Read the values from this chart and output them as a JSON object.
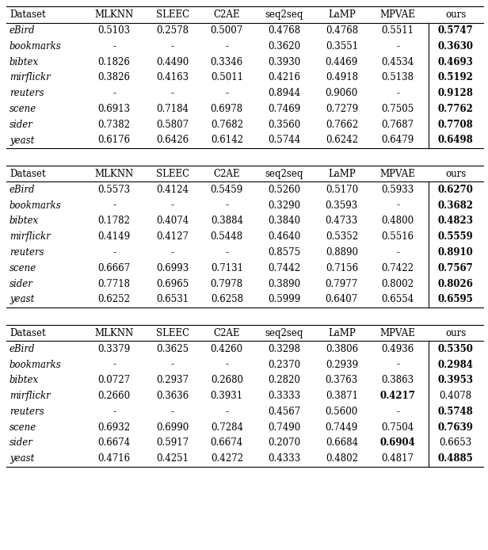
{
  "tables": [
    {
      "header": [
        "Dataset",
        "MLKNN",
        "SLEEC",
        "C2AE",
        "seq2seq",
        "LaMP",
        "MPVAE",
        "ours"
      ],
      "rows": [
        [
          "eBird",
          "0.5103",
          "0.2578",
          "0.5007",
          "0.4768",
          "0.4768",
          "0.5511",
          "0.5747"
        ],
        [
          "bookmarks",
          "-",
          "-",
          "-",
          "0.3620",
          "0.3551",
          "-",
          "0.3630"
        ],
        [
          "bibtex",
          "0.1826",
          "0.4490",
          "0.3346",
          "0.3930",
          "0.4469",
          "0.4534",
          "0.4693"
        ],
        [
          "mirflickr",
          "0.3826",
          "0.4163",
          "0.5011",
          "0.4216",
          "0.4918",
          "0.5138",
          "0.5192"
        ],
        [
          "reuters",
          "-",
          "-",
          "-",
          "0.8944",
          "0.9060",
          "-",
          "0.9128"
        ],
        [
          "scene",
          "0.6913",
          "0.7184",
          "0.6978",
          "0.7469",
          "0.7279",
          "0.7505",
          "0.7762"
        ],
        [
          "sider",
          "0.7382",
          "0.5807",
          "0.7682",
          "0.3560",
          "0.7662",
          "0.7687",
          "0.7708"
        ],
        [
          "yeast",
          "0.6176",
          "0.6426",
          "0.6142",
          "0.5744",
          "0.6242",
          "0.6479",
          "0.6498"
        ]
      ],
      "bold": {
        "0": 7,
        "1": 7,
        "2": 7,
        "3": 7,
        "4": 7,
        "5": 7,
        "6": 7,
        "7": 7
      }
    },
    {
      "header": [
        "Dataset",
        "MLKNN",
        "SLEEC",
        "C2AE",
        "seq2seq",
        "LaMP",
        "MPVAE",
        "ours"
      ],
      "rows": [
        [
          "eBird",
          "0.5573",
          "0.4124",
          "0.5459",
          "0.5260",
          "0.5170",
          "0.5933",
          "0.6270"
        ],
        [
          "bookmarks",
          "-",
          "-",
          "-",
          "0.3290",
          "0.3593",
          "-",
          "0.3682"
        ],
        [
          "bibtex",
          "0.1782",
          "0.4074",
          "0.3884",
          "0.3840",
          "0.4733",
          "0.4800",
          "0.4823"
        ],
        [
          "mirflickr",
          "0.4149",
          "0.4127",
          "0.5448",
          "0.4640",
          "0.5352",
          "0.5516",
          "0.5559"
        ],
        [
          "reuters",
          "-",
          "-",
          "-",
          "0.8575",
          "0.8890",
          "-",
          "0.8910"
        ],
        [
          "scene",
          "0.6667",
          "0.6993",
          "0.7131",
          "0.7442",
          "0.7156",
          "0.7422",
          "0.7567"
        ],
        [
          "sider",
          "0.7718",
          "0.6965",
          "0.7978",
          "0.3890",
          "0.7977",
          "0.8002",
          "0.8026"
        ],
        [
          "yeast",
          "0.6252",
          "0.6531",
          "0.6258",
          "0.5999",
          "0.6407",
          "0.6554",
          "0.6595"
        ]
      ],
      "bold": {
        "0": 7,
        "1": 7,
        "2": 7,
        "3": 7,
        "4": 7,
        "5": 7,
        "6": 7,
        "7": 7
      }
    },
    {
      "header": [
        "Dataset",
        "MLKNN",
        "SLEEC",
        "C2AE",
        "seq2seq",
        "LaMP",
        "MPVAE",
        "ours"
      ],
      "rows": [
        [
          "eBird",
          "0.3379",
          "0.3625",
          "0.4260",
          "0.3298",
          "0.3806",
          "0.4936",
          "0.5350"
        ],
        [
          "bookmarks",
          "-",
          "-",
          "-",
          "0.2370",
          "0.2939",
          "-",
          "0.2984"
        ],
        [
          "bibtex",
          "0.0727",
          "0.2937",
          "0.2680",
          "0.2820",
          "0.3763",
          "0.3863",
          "0.3953"
        ],
        [
          "mirflickr",
          "0.2660",
          "0.3636",
          "0.3931",
          "0.3333",
          "0.3871",
          "0.4217",
          "0.4078"
        ],
        [
          "reuters",
          "-",
          "-",
          "-",
          "0.4567",
          "0.5600",
          "-",
          "0.5748"
        ],
        [
          "scene",
          "0.6932",
          "0.6990",
          "0.7284",
          "0.7490",
          "0.7449",
          "0.7504",
          "0.7639"
        ],
        [
          "sider",
          "0.6674",
          "0.5917",
          "0.6674",
          "0.2070",
          "0.6684",
          "0.6904",
          "0.6653"
        ],
        [
          "yeast",
          "0.4716",
          "0.4251",
          "0.4272",
          "0.4333",
          "0.4802",
          "0.4817",
          "0.4885"
        ]
      ],
      "bold": {
        "0": 7,
        "1": 7,
        "2": 7,
        "3": 6,
        "4": 7,
        "5": 7,
        "6": 6,
        "7": 7
      }
    }
  ],
  "font_size": 8.5,
  "background_color": "#ffffff"
}
